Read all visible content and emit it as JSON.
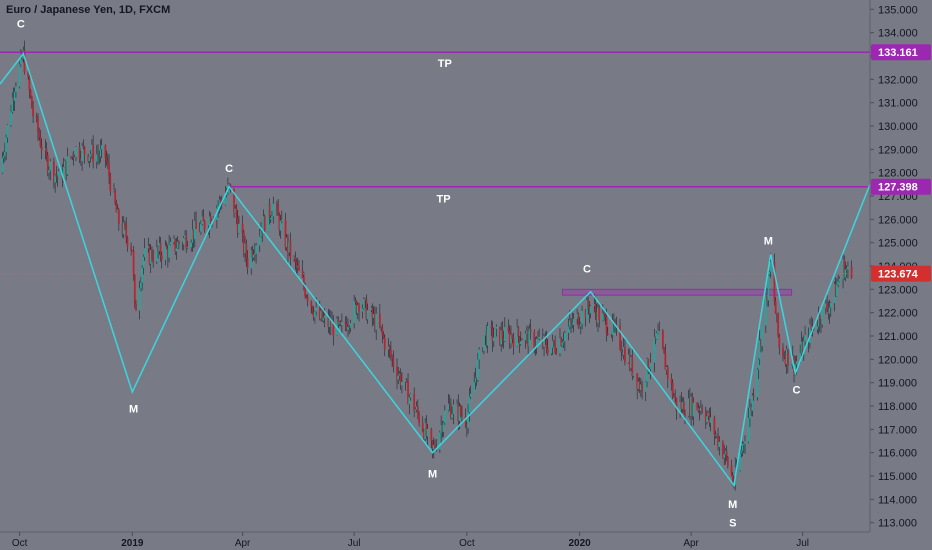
{
  "header": {
    "title": "Euro / Japanese Yen, 1D, FXCM"
  },
  "colors": {
    "background": "#787b86",
    "candle_up": "#26a69a",
    "candle_down": "#b22833",
    "wick": "#1e222d",
    "pattern_line": "#3ad6e0",
    "tp_line": "#9c27b0",
    "current_price_line": "#ef5350",
    "zone_fill": "#9c27b0"
  },
  "chart_data": {
    "type": "candlestick",
    "title": "Euro / Japanese Yen, 1D, FXCM",
    "y_axis": {
      "range": [
        112.6,
        135.4
      ],
      "tick_labels": [
        "135.000",
        "134.000",
        "133.000",
        "132.000",
        "131.000",
        "130.000",
        "129.000",
        "128.000",
        "127.000",
        "126.000",
        "125.000",
        "124.000",
        "123.000",
        "122.000",
        "121.000",
        "120.000",
        "119.000",
        "118.000",
        "117.000",
        "116.000",
        "115.000",
        "114.000",
        "113.000"
      ],
      "tick_values": [
        135,
        134,
        133,
        132,
        131,
        130,
        129,
        128,
        127,
        126,
        125,
        124,
        123,
        122,
        121,
        120,
        119,
        118,
        117,
        116,
        115,
        114,
        113
      ]
    },
    "x_axis": {
      "range": [
        "2018-09-15",
        "2020-08-25"
      ],
      "tick_labels": [
        "Oct",
        "2019",
        "Apr",
        "Jul",
        "Oct",
        "2020",
        "Apr",
        "Jul"
      ],
      "tick_dates": [
        "2018-10-01",
        "2019-01-01",
        "2019-04-01",
        "2019-07-01",
        "2019-10-01",
        "2020-01-01",
        "2020-04-01",
        "2020-07-01"
      ],
      "bold_ticks": [
        "2019",
        "2020"
      ]
    },
    "price_path": [
      [
        "2018-09-15",
        128.0
      ],
      [
        "2018-09-27",
        131.8
      ],
      [
        "2018-10-04",
        133.0
      ],
      [
        "2018-10-12",
        130.5
      ],
      [
        "2018-10-22",
        128.6
      ],
      [
        "2018-11-02",
        127.7
      ],
      [
        "2018-11-15",
        129.0
      ],
      [
        "2018-12-10",
        128.7
      ],
      [
        "2018-12-20",
        126.0
      ],
      [
        "2019-01-01",
        124.8
      ],
      [
        "2019-01-03",
        122.0
      ],
      [
        "2019-01-10",
        124.4
      ],
      [
        "2019-02-01",
        124.7
      ],
      [
        "2019-03-01",
        125.8
      ],
      [
        "2019-03-21",
        127.3
      ],
      [
        "2019-04-01",
        125.0
      ],
      [
        "2019-04-05",
        124.2
      ],
      [
        "2019-04-15",
        125.5
      ],
      [
        "2019-04-26",
        126.6
      ],
      [
        "2019-05-10",
        124.5
      ],
      [
        "2019-06-01",
        121.8
      ],
      [
        "2019-06-20",
        121.2
      ],
      [
        "2019-07-05",
        122.5
      ],
      [
        "2019-07-20",
        121.5
      ],
      [
        "2019-08-05",
        119.5
      ],
      [
        "2019-08-25",
        117.3
      ],
      [
        "2019-09-03",
        116.0
      ],
      [
        "2019-09-15",
        118.0
      ],
      [
        "2019-10-01",
        117.5
      ],
      [
        "2019-10-15",
        121.0
      ],
      [
        "2019-11-15",
        121.0
      ],
      [
        "2019-12-10",
        120.5
      ],
      [
        "2019-12-26",
        121.5
      ],
      [
        "2020-01-10",
        122.3
      ],
      [
        "2020-02-01",
        121.0
      ],
      [
        "2020-02-20",
        118.8
      ],
      [
        "2020-03-05",
        121.0
      ],
      [
        "2020-03-20",
        118.0
      ],
      [
        "2020-04-10",
        118.0
      ],
      [
        "2020-04-28",
        116.0
      ],
      [
        "2020-05-06",
        114.7
      ],
      [
        "2020-05-20",
        118.0
      ],
      [
        "2020-06-05",
        124.0
      ],
      [
        "2020-06-12",
        120.5
      ],
      [
        "2020-06-25",
        119.8
      ],
      [
        "2020-07-10",
        121.5
      ],
      [
        "2020-07-25",
        122.5
      ],
      [
        "2020-08-03",
        124.0
      ],
      [
        "2020-08-10",
        123.5
      ]
    ],
    "horizontal_lines": [
      {
        "label": "TP",
        "value": 133.161,
        "tag": "133.161",
        "start": "2018-09-15"
      },
      {
        "label": "TP",
        "value": 127.398,
        "tag": "127.398",
        "start": "2019-03-21"
      }
    ],
    "current_price": {
      "value": 123.674,
      "tag": "123.674"
    },
    "resistance_zone": {
      "start": "2019-12-18",
      "end": "2020-06-22",
      "low": 122.75,
      "high": 123.0
    },
    "pattern_lines": [
      [
        [
          "2018-09-15",
          131.8
        ],
        [
          "2018-10-04",
          133.1
        ],
        [
          "2019-01-01",
          118.6
        ],
        [
          "2019-03-21",
          127.4
        ],
        [
          "2019-09-03",
          116.0
        ],
        [
          "2020-01-10",
          122.9
        ],
        [
          "2020-05-06",
          114.6
        ],
        [
          "2020-06-05",
          124.5
        ],
        [
          "2020-06-25",
          119.4
        ],
        [
          "2020-08-25",
          127.5
        ]
      ]
    ],
    "annotations": [
      {
        "text": "C",
        "date": "2018-10-02",
        "value": 134.4,
        "position": "above"
      },
      {
        "text": "TP",
        "date": "2019-09-13",
        "value": 132.7,
        "position": "below"
      },
      {
        "text": "M",
        "date": "2019-01-02",
        "value": 117.9,
        "position": "below"
      },
      {
        "text": "C",
        "date": "2019-03-21",
        "value": 128.2,
        "position": "above"
      },
      {
        "text": "TP",
        "date": "2019-09-12",
        "value": 126.9,
        "position": "below"
      },
      {
        "text": "M",
        "date": "2019-09-03",
        "value": 115.1,
        "position": "below"
      },
      {
        "text": "C",
        "date": "2020-01-07",
        "value": 123.9,
        "position": "above"
      },
      {
        "text": "M",
        "date": "2020-06-03",
        "value": 125.1,
        "position": "above"
      },
      {
        "text": "C",
        "date": "2020-06-26",
        "value": 118.7,
        "position": "below"
      },
      {
        "text": "M",
        "date": "2020-05-05",
        "value": 113.8,
        "position": "below"
      },
      {
        "text": "S",
        "date": "2020-05-05",
        "value": 113.0,
        "position": "below"
      }
    ]
  }
}
